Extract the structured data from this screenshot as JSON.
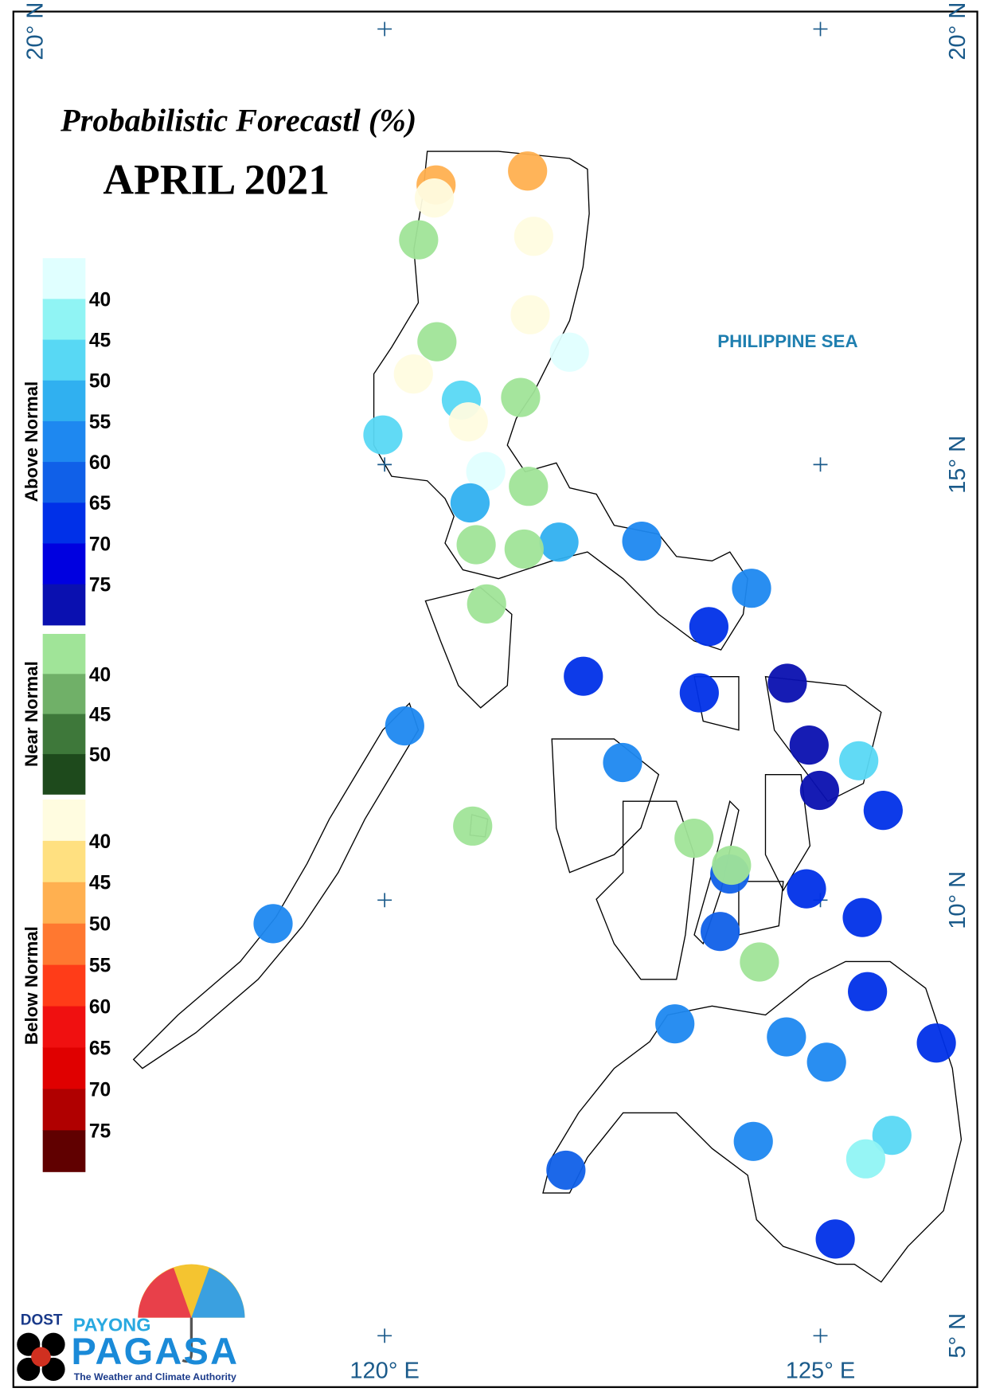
{
  "map": {
    "title": "Probabilistic Forecastl (%)",
    "subtitle": "APRIL 2021",
    "sea_label": "PHILIPPINE SEA",
    "xlim": [
      115.74,
      126.8
    ],
    "ylim": [
      4.41,
      20.2
    ],
    "xticks": [
      {
        "value": 120,
        "label": "120° E"
      },
      {
        "value": 125,
        "label": "125° E"
      }
    ],
    "yticks": [
      {
        "value": 20,
        "label": "20° N"
      },
      {
        "value": 15,
        "label": "15° N"
      },
      {
        "value": 10,
        "label": "10° N"
      },
      {
        "value": 5,
        "label": "5° N"
      }
    ],
    "legend": [
      {
        "name": "Above Normal",
        "ticks": [
          40,
          45,
          50,
          55,
          60,
          65,
          70,
          75
        ],
        "colors": [
          "#e0ffff",
          "#90f4f4",
          "#58d8f4",
          "#30b0f0",
          "#1e88f0",
          "#1060e8",
          "#0030e8",
          "#0000e0",
          "#0a10b0"
        ],
        "stations": [
          {
            "lon": 122.12,
            "lat": 16.29,
            "value": 37
          },
          {
            "lon": 120.88,
            "lat": 15.74,
            "value": 47
          },
          {
            "lon": 119.98,
            "lat": 15.34,
            "value": 47
          },
          {
            "lon": 121.16,
            "lat": 14.92,
            "value": 37
          },
          {
            "lon": 120.98,
            "lat": 14.56,
            "value": 52
          },
          {
            "lon": 122.0,
            "lat": 14.11,
            "value": 52
          },
          {
            "lon": 122.95,
            "lat": 14.12,
            "value": 57
          },
          {
            "lon": 124.21,
            "lat": 13.58,
            "value": 57
          },
          {
            "lon": 123.72,
            "lat": 13.14,
            "value": 67
          },
          {
            "lon": 122.28,
            "lat": 12.57,
            "value": 67
          },
          {
            "lon": 123.61,
            "lat": 12.38,
            "value": 67
          },
          {
            "lon": 124.62,
            "lat": 12.49,
            "value": 77
          },
          {
            "lon": 120.23,
            "lat": 12.0,
            "value": 57
          },
          {
            "lon": 122.73,
            "lat": 11.58,
            "value": 57
          },
          {
            "lon": 124.87,
            "lat": 11.78,
            "value": 77
          },
          {
            "lon": 125.44,
            "lat": 11.6,
            "value": 47
          },
          {
            "lon": 124.99,
            "lat": 11.26,
            "value": 77
          },
          {
            "lon": 125.72,
            "lat": 11.03,
            "value": 67
          },
          {
            "lon": 123.96,
            "lat": 10.3,
            "value": 62
          },
          {
            "lon": 124.84,
            "lat": 10.13,
            "value": 67
          },
          {
            "lon": 125.48,
            "lat": 9.8,
            "value": 67
          },
          {
            "lon": 123.85,
            "lat": 9.64,
            "value": 62
          },
          {
            "lon": 118.72,
            "lat": 9.73,
            "value": 57
          },
          {
            "lon": 125.54,
            "lat": 8.95,
            "value": 67
          },
          {
            "lon": 123.33,
            "lat": 8.58,
            "value": 57
          },
          {
            "lon": 126.33,
            "lat": 8.36,
            "value": 67
          },
          {
            "lon": 124.61,
            "lat": 8.43,
            "value": 57
          },
          {
            "lon": 125.07,
            "lat": 8.14,
            "value": 57
          },
          {
            "lon": 124.23,
            "lat": 7.23,
            "value": 57
          },
          {
            "lon": 125.82,
            "lat": 7.3,
            "value": 47
          },
          {
            "lon": 125.52,
            "lat": 7.03,
            "value": 42
          },
          {
            "lon": 122.08,
            "lat": 6.9,
            "value": 62
          },
          {
            "lon": 125.17,
            "lat": 6.11,
            "value": 67
          }
        ]
      },
      {
        "name": "Near Normal",
        "ticks": [
          40,
          45,
          50
        ],
        "colors": [
          "#a0e498",
          "#70b068",
          "#3e783a",
          "#1e4a1c"
        ],
        "stations": [
          {
            "lon": 120.39,
            "lat": 17.58,
            "value": 37
          },
          {
            "lon": 120.6,
            "lat": 16.41,
            "value": 37
          },
          {
            "lon": 121.56,
            "lat": 15.77,
            "value": 37
          },
          {
            "lon": 121.65,
            "lat": 14.75,
            "value": 37
          },
          {
            "lon": 121.05,
            "lat": 14.08,
            "value": 37
          },
          {
            "lon": 121.6,
            "lat": 14.03,
            "value": 37
          },
          {
            "lon": 121.17,
            "lat": 13.4,
            "value": 37
          },
          {
            "lon": 123.55,
            "lat": 10.71,
            "value": 37
          },
          {
            "lon": 123.98,
            "lat": 10.4,
            "value": 37
          },
          {
            "lon": 121.01,
            "lat": 10.85,
            "value": 37
          },
          {
            "lon": 124.3,
            "lat": 9.29,
            "value": 37
          }
        ]
      },
      {
        "name": "Below Normal",
        "ticks": [
          40,
          45,
          50,
          55,
          60,
          65,
          70,
          75
        ],
        "colors": [
          "#fffce0",
          "#ffe080",
          "#ffb050",
          "#ff7830",
          "#ff3c18",
          "#f01010",
          "#e00000",
          "#b00000",
          "#600000"
        ],
        "stations": [
          {
            "lon": 120.59,
            "lat": 18.21,
            "value": 47
          },
          {
            "lon": 121.64,
            "lat": 18.37,
            "value": 47
          },
          {
            "lon": 120.57,
            "lat": 18.06,
            "value": 37
          },
          {
            "lon": 121.71,
            "lat": 17.62,
            "value": 37
          },
          {
            "lon": 121.67,
            "lat": 16.72,
            "value": 37
          },
          {
            "lon": 120.33,
            "lat": 16.04,
            "value": 37
          },
          {
            "lon": 120.96,
            "lat": 15.49,
            "value": 37
          }
        ]
      }
    ]
  },
  "logo": {
    "agency": "DOST",
    "brand_top": "PAYONG",
    "brand": "PAGASA",
    "tagline": "The Weather and Climate Authority"
  }
}
